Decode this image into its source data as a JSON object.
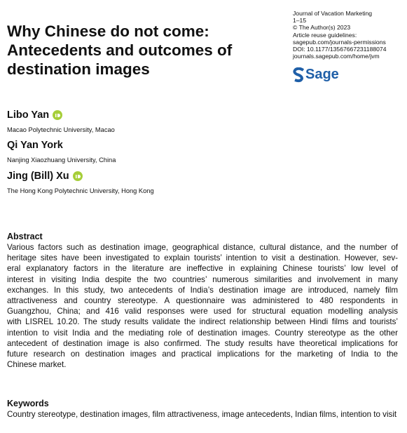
{
  "header": {
    "title": "Why Chinese do not come: Antecedents and outcomes of destination images",
    "journal_info": [
      "Journal of Vacation Marketing",
      "1–15",
      "© The Author(s) 2023",
      "Article reuse guidelines:",
      "sagepub.com/journals-permissions",
      "DOI: 10.1177/13567667231188074",
      "journals.sagepub.com/home/jvm"
    ],
    "publisher": "Sage"
  },
  "authors": [
    {
      "name": "Libo Yan",
      "affiliation": "Macao Polytechnic University, Macao",
      "orcid": true
    },
    {
      "name": "Qi Yan York",
      "affiliation": "Nanjing Xiaozhuang University, China",
      "orcid": false
    },
    {
      "name": "Jing (Bill) Xu",
      "affiliation": "The Hong Kong Polytechnic University, Hong Kong",
      "orcid": true
    }
  ],
  "abstract": {
    "heading": "Abstract",
    "lines": [
      "Various factors such as destination image, geographical distance, cultural distance, and the number of",
      "heritage sites have been investigated to explain tourists’ intention to visit a destination. However, sev-",
      "eral explanatory factors in the literature are ineffective in explaining Chinese tourists’ low level of",
      "interest in visiting India despite the two countries’ numerous similarities and involvement in many",
      "exchanges. In this study, two antecedents of India’s destination image are introduced, namely film",
      "attractiveness and country stereotype. A questionnaire was administered to 480 respondents in",
      "Guangzhou, China; and 416 valid responses were used for structural equation modelling analysis",
      "with LISREL 10.20. The study results validate the indirect relationship between Hindi films and tourists’",
      "intention to visit India and the mediating role of destination images. Country stereotype as the other",
      "antecedent of destination image is also confirmed. The study results have theoretical implications for",
      "future research on destination images and practical implications for the marketing of India to the",
      "Chinese market."
    ]
  },
  "keywords": {
    "heading": "Keywords",
    "text": "Country stereotype, destination images, film attractiveness, image antecedents, Indian films, intention to visit"
  }
}
